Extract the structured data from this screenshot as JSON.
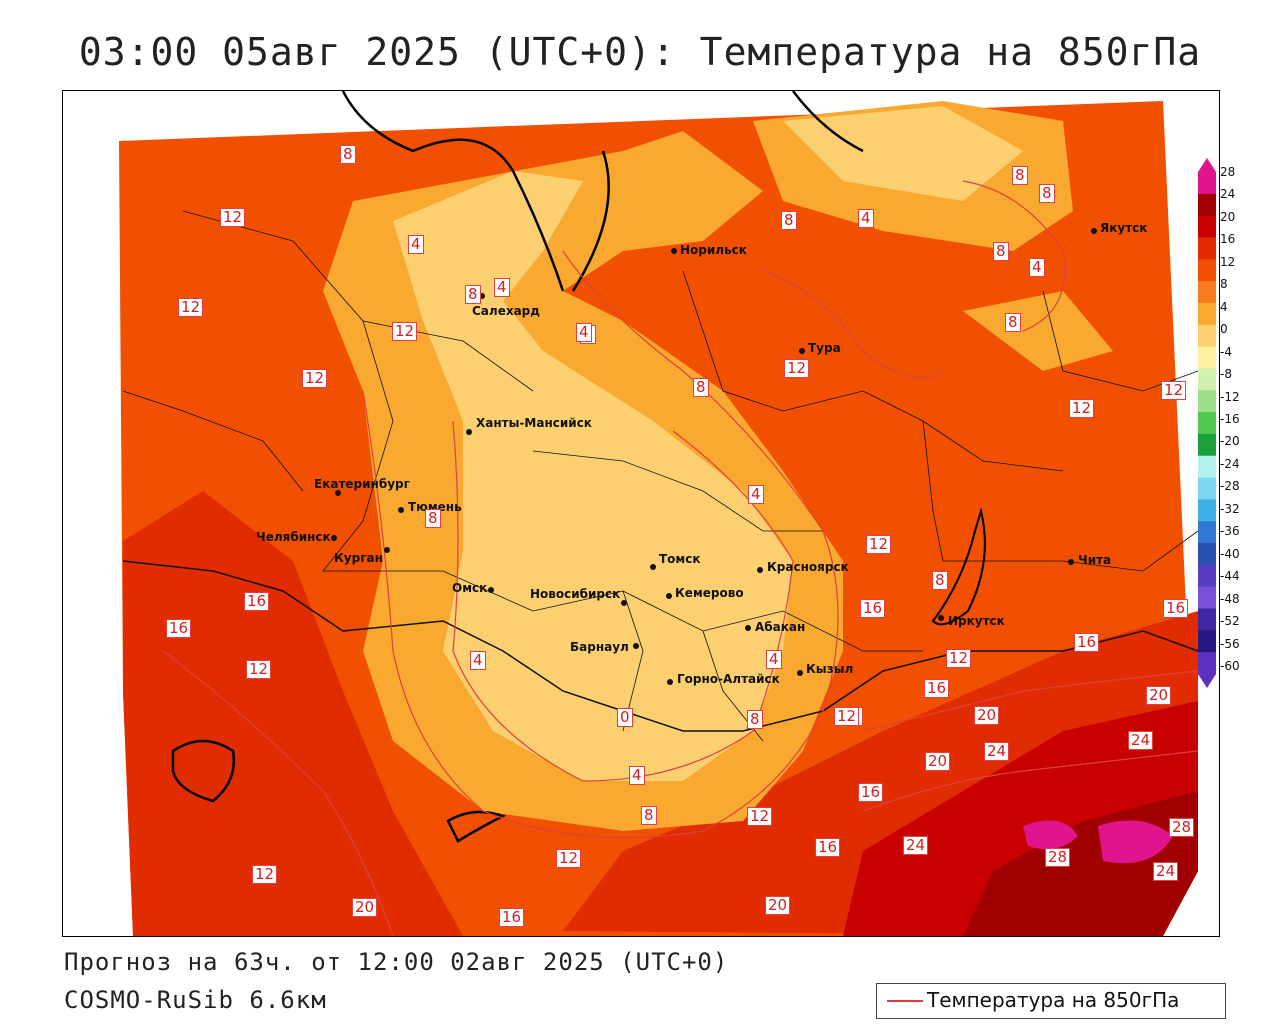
{
  "title": "03:00 05авг 2025 (UTC+0): Температура на 850гПа",
  "footer": {
    "forecast": "Прогноз на 63ч. от 12:00 02авг 2025 (UTC+0)",
    "model": "COSMO-RuSib 6.6км"
  },
  "legend": {
    "label": "Температура на 850гПа",
    "line_color": "#e23c3c"
  },
  "colorbar": {
    "ticks": [
      "28",
      "24",
      "20",
      "16",
      "12",
      "8",
      "4",
      "0",
      "-4",
      "-8",
      "-12",
      "-16",
      "-20",
      "-24",
      "-28",
      "-32",
      "-36",
      "-40",
      "-44",
      "-48",
      "-52",
      "-56",
      "-60"
    ],
    "colors": [
      "#e0148c",
      "#a00000",
      "#c80000",
      "#e02c00",
      "#f05000",
      "#f57d20",
      "#f9a830",
      "#fcd070",
      "#fff0a0",
      "#d0f0b0",
      "#9ce08c",
      "#50c850",
      "#1ca03c",
      "#b4f0f0",
      "#7cd8f0",
      "#40b0e8",
      "#3078d0",
      "#2850b0",
      "#5a3cc0",
      "#7a50d8",
      "#4028a0",
      "#281880",
      "#6030c0"
    ]
  },
  "cities": [
    {
      "name": "Норильск"
    },
    {
      "name": "Якутск"
    },
    {
      "name": "Салехард"
    },
    {
      "name": "Тура"
    },
    {
      "name": "Ханты-Мансийск"
    },
    {
      "name": "Екатеринбург"
    },
    {
      "name": "Тюмень"
    },
    {
      "name": "Челябинск"
    },
    {
      "name": "Курган"
    },
    {
      "name": "Омск"
    },
    {
      "name": "Новосибирск"
    },
    {
      "name": "Томск"
    },
    {
      "name": "Кемерово"
    },
    {
      "name": "Красноярск"
    },
    {
      "name": "Абакан"
    },
    {
      "name": "Барнаул"
    },
    {
      "name": "Горно-Алтайск"
    },
    {
      "name": "Кызыл"
    },
    {
      "name": "Иркутск"
    },
    {
      "name": "Чита"
    }
  ],
  "contour_labels": [
    "8",
    "4",
    "4",
    "8",
    "12",
    "12",
    "4",
    "8",
    "4",
    "8",
    "8",
    "12",
    "12",
    "12",
    "4",
    "8",
    "12",
    "12",
    "4",
    "8",
    "16",
    "16",
    "12",
    "4",
    "0",
    "4",
    "8",
    "12",
    "8",
    "16",
    "12",
    "16",
    "12",
    "16",
    "20",
    "20",
    "24",
    "24",
    "20",
    "16",
    "16",
    "24",
    "28",
    "28",
    "24",
    "16",
    "16",
    "20",
    "12",
    "16",
    "20",
    "4",
    "8",
    "8",
    "4",
    "8",
    "12",
    "12"
  ]
}
